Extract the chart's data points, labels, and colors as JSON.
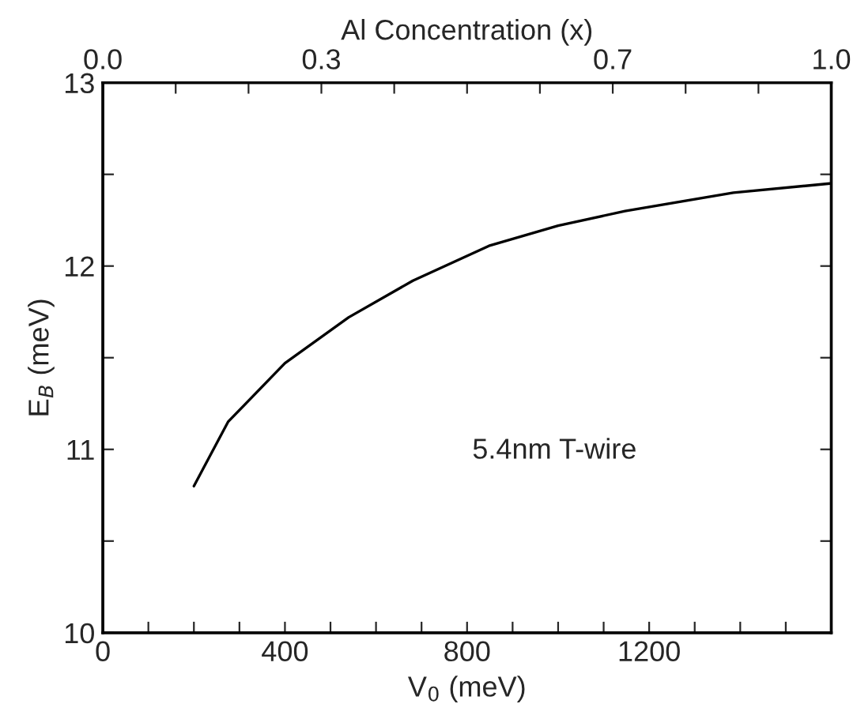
{
  "chart_data": {
    "type": "line",
    "xlabel": "V$_{0}$ (meV)",
    "ylabel": "E$_{B}$ (meV)",
    "x2label": "Al Concentration (x)",
    "x": [
      200,
      275,
      400,
      540,
      681,
      848,
      1000,
      1147,
      1385,
      1597
    ],
    "series": [
      {
        "color": "#000000",
        "values": [
          10.8,
          11.15,
          11.47,
          11.72,
          11.92,
          12.11,
          12.22,
          12.3,
          12.4,
          12.45
        ]
      }
    ],
    "xlim": [
      0,
      1600
    ],
    "ylim": [
      10,
      13
    ],
    "xticks": [
      0,
      {
        "value": 100,
        "label": null
      },
      {
        "value": 200,
        "label": null
      },
      {
        "value": 300,
        "label": null
      },
      400,
      {
        "value": 500,
        "label": null
      },
      {
        "value": 600,
        "label": null
      },
      {
        "value": 700,
        "label": null
      },
      800,
      {
        "value": 900,
        "label": null
      },
      {
        "value": 1000,
        "label": null
      },
      {
        "value": 1100,
        "label": null
      },
      1200,
      {
        "value": 1300,
        "label": null
      },
      {
        "value": 1400,
        "label": null
      },
      {
        "value": 1500,
        "label": null
      }
    ],
    "yticks": [
      10,
      {
        "value": 10.5,
        "label": null
      },
      11,
      {
        "value": 11.5,
        "label": null
      },
      12,
      {
        "value": 12.5,
        "label": null
      },
      13
    ],
    "x2lim": [
      0,
      1
    ],
    "x2ticks": [
      {
        "value": 0,
        "label": "0.0"
      },
      {
        "value": 0.1,
        "label": null
      },
      {
        "value": 0.2,
        "label": null
      },
      {
        "value": 0.3,
        "label": "0.3"
      },
      {
        "value": 0.4,
        "label": null
      },
      {
        "value": 0.5,
        "label": null
      },
      {
        "value": 0.6,
        "label": null
      },
      {
        "value": 0.7,
        "label": "0.7"
      },
      {
        "value": 0.8,
        "label": null
      },
      {
        "value": 0.9,
        "label": null
      },
      {
        "value": 1,
        "label": "1.0"
      }
    ],
    "annotations": [
      "5.4nm T-wire"
    ],
    "grid": false,
    "legend": false,
    "marker": "none",
    "line_style": "solid"
  }
}
